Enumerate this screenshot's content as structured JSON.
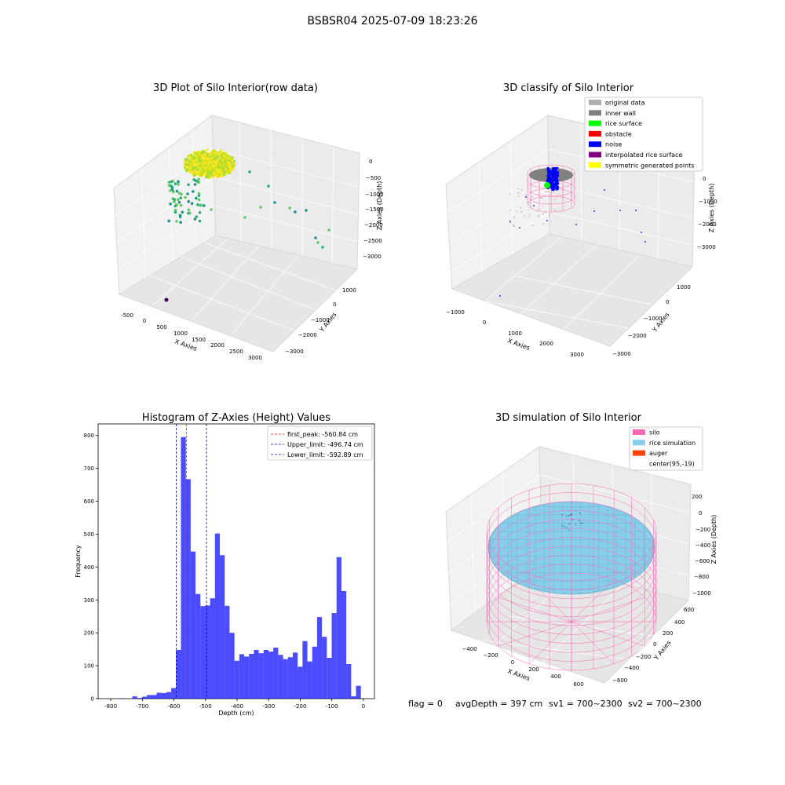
{
  "figure": {
    "suptitle": "BSBSR04 2025-07-09 18:23:26",
    "status": {
      "flag": "flag = 0",
      "avg_depth": "avgDepth = 397 cm",
      "sv1": "sv1 = 700~2300",
      "sv2": "sv2 = 700~2300"
    }
  },
  "chart_data": [
    {
      "type": "scatter",
      "projection": "3d",
      "title": "3D Plot of Silo Interior(row data)",
      "xlabel": "X Axies",
      "ylabel": "Y Axies",
      "zlabel": "Z Axies (Depth)",
      "x_ticks": [
        "-500",
        "0",
        "500",
        "1000",
        "1500",
        "2000",
        "2500",
        "3000"
      ],
      "y_ticks": [
        "1000",
        "0",
        "−1000",
        "−2000",
        "−3000"
      ],
      "z_ticks": [
        "0",
        "−500",
        "−1000",
        "−1500",
        "−2000",
        "−2500",
        "−3000"
      ],
      "colormap": "viridis"
    },
    {
      "type": "scatter",
      "projection": "3d",
      "title": "3D classify of Silo Interior",
      "xlabel": "X Axies",
      "ylabel": "Y Axies",
      "zlabel": "Z Axies (Depth)",
      "x_ticks": [
        "−1000",
        "0",
        "1000",
        "2000",
        "3000"
      ],
      "y_ticks": [
        "1000",
        "0",
        "−1000",
        "−2000",
        "−3000"
      ],
      "z_ticks": [
        "0",
        "−1000",
        "−2000",
        "−3000"
      ],
      "legend_position": "top-right",
      "legend": [
        {
          "label": "original data",
          "color": "#b0b0b0"
        },
        {
          "label": "inner wall",
          "color": "#808080"
        },
        {
          "label": "rice surface",
          "color": "#00ff00"
        },
        {
          "label": "obstacle",
          "color": "#ff0000"
        },
        {
          "label": "noise",
          "color": "#0000ff"
        },
        {
          "label": "interpolated rice surface",
          "color": "#800080"
        },
        {
          "label": "symmetric generated points",
          "color": "#ffff00"
        }
      ]
    },
    {
      "type": "bar",
      "title": "Histogram of Z-Axies (Height) Values",
      "xlabel": "Depth (cm)",
      "ylabel": "Frequency",
      "xlim": [
        -840,
        35
      ],
      "ylim": [
        0,
        835
      ],
      "x_ticks": [
        -800,
        -700,
        -600,
        -500,
        -400,
        -300,
        -200,
        -100,
        0
      ],
      "y_ticks": [
        0,
        100,
        200,
        300,
        400,
        500,
        600,
        700,
        800
      ],
      "bar_color": "#0000ff",
      "bin_width": 15.4,
      "bins_start": -778,
      "counts": [
        1,
        1,
        0,
        7,
        2,
        6,
        11,
        11,
        18,
        17,
        20,
        32,
        148,
        795,
        667,
        447,
        318,
        281,
        283,
        305,
        502,
        436,
        282,
        200,
        115,
        135,
        128,
        136,
        148,
        138,
        148,
        143,
        155,
        133,
        120,
        126,
        140,
        97,
        175,
        113,
        158,
        248,
        188,
        124,
        260,
        430,
        327,
        105,
        7,
        39
      ],
      "lines": [
        {
          "label": "first_peak: -560.84 cm",
          "x": -560.84,
          "color": "#ff0000"
        },
        {
          "label": "Upper_limit: -496.74 cm",
          "x": -496.74,
          "color": "#0000aa"
        },
        {
          "label": "Lower_limit: -592.89 cm",
          "x": -592.89,
          "color": "#0000aa"
        }
      ],
      "legend_position": "top-right"
    },
    {
      "type": "surface",
      "projection": "3d",
      "title": "3D simulation of Silo Interior",
      "xlabel": "X Axies",
      "ylabel": "Y Axies",
      "zlabel": "Z Axies (Depth)",
      "x_ticks": [
        "−400",
        "−200",
        "0",
        "200",
        "400",
        "600"
      ],
      "y_ticks": [
        "600",
        "400",
        "200",
        "0",
        "−200",
        "−400",
        "−600"
      ],
      "z_ticks": [
        "200",
        "0",
        "−200",
        "−400",
        "−600",
        "−800",
        "−1000"
      ],
      "legend_position": "top-right",
      "legend": [
        {
          "label": "silo",
          "color": "#ff69b4"
        },
        {
          "label": "rice simulation",
          "color": "#87ceeb"
        },
        {
          "label": "auger",
          "color": "#ff4500"
        },
        {
          "label": "center(95,-19)",
          "color": "#ffffff"
        }
      ]
    }
  ]
}
